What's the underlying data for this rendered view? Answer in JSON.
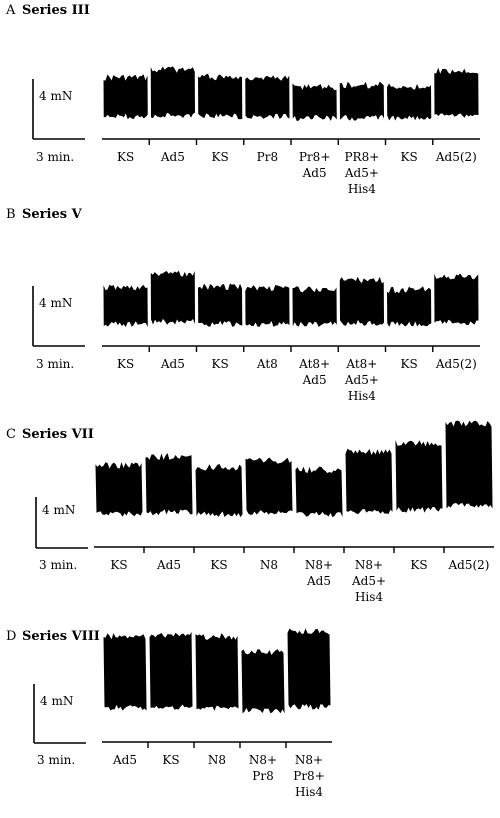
{
  "chart_data": [
    {
      "type": "area",
      "panel_letter": "A",
      "title": "Series III",
      "scale_bar_label": "4 mN",
      "time_bar_label": "3 min.",
      "segments": [
        {
          "label": [
            "KS"
          ],
          "relative_amplitude": 0.87
        },
        {
          "label": [
            "Ad5"
          ],
          "relative_amplitude": 1.0
        },
        {
          "label": [
            "KS"
          ],
          "relative_amplitude": 0.88
        },
        {
          "label": [
            "Pr8"
          ],
          "relative_amplitude": 0.87
        },
        {
          "label": [
            "Pr8+",
            "Ad5"
          ],
          "relative_amplitude": 0.72
        },
        {
          "label": [
            "PR8+",
            "Ad5+",
            "His4"
          ],
          "relative_amplitude": 0.75
        },
        {
          "label": [
            "KS"
          ],
          "relative_amplitude": 0.72
        },
        {
          "label": [
            "Ad5(2)"
          ],
          "relative_amplitude": 0.98
        }
      ]
    },
    {
      "type": "area",
      "panel_letter": "B",
      "title": "Series V",
      "scale_bar_label": "4 mN",
      "time_bar_label": "3 min.",
      "segments": [
        {
          "label": [
            "KS"
          ],
          "relative_amplitude": 0.78
        },
        {
          "label": [
            "Ad5"
          ],
          "relative_amplitude": 1.0
        },
        {
          "label": [
            "KS"
          ],
          "relative_amplitude": 0.8
        },
        {
          "label": [
            "At8"
          ],
          "relative_amplitude": 0.78
        },
        {
          "label": [
            "At8+",
            "Ad5"
          ],
          "relative_amplitude": 0.75
        },
        {
          "label": [
            "At8+",
            "Ad5+",
            "His4"
          ],
          "relative_amplitude": 0.9
        },
        {
          "label": [
            "KS"
          ],
          "relative_amplitude": 0.75
        },
        {
          "label": [
            "Ad5(2)"
          ],
          "relative_amplitude": 0.95
        }
      ]
    },
    {
      "type": "area",
      "panel_letter": "C",
      "title": "Series VII",
      "scale_bar_label": "4 mN",
      "time_bar_label": "3 min.",
      "segments": [
        {
          "label": [
            "KS"
          ],
          "relative_amplitude": 0.62
        },
        {
          "label": [
            "Ad5"
          ],
          "relative_amplitude": 0.7
        },
        {
          "label": [
            "KS"
          ],
          "relative_amplitude": 0.6
        },
        {
          "label": [
            "N8"
          ],
          "relative_amplitude": 0.66
        },
        {
          "label": [
            "N8+",
            "Ad5"
          ],
          "relative_amplitude": 0.58
        },
        {
          "label": [
            "N8+",
            "Ad5+",
            "His4"
          ],
          "relative_amplitude": 0.74
        },
        {
          "label": [
            "KS"
          ],
          "relative_amplitude": 0.82
        },
        {
          "label": [
            "Ad5(2)"
          ],
          "relative_amplitude": 1.0
        }
      ]
    },
    {
      "type": "area",
      "panel_letter": "D",
      "title": "Series VIII",
      "scale_bar_label": "4 mN",
      "time_bar_label": "3 min.",
      "segments": [
        {
          "label": [
            "Ad5"
          ],
          "relative_amplitude": 0.95
        },
        {
          "label": [
            "KS"
          ],
          "relative_amplitude": 0.97
        },
        {
          "label": [
            "N8"
          ],
          "relative_amplitude": 0.95
        },
        {
          "label": [
            "N8+",
            "Pr8"
          ],
          "relative_amplitude": 0.8
        },
        {
          "label": [
            "N8+",
            "Pr8+",
            "His4"
          ],
          "relative_amplitude": 1.0
        }
      ]
    }
  ]
}
